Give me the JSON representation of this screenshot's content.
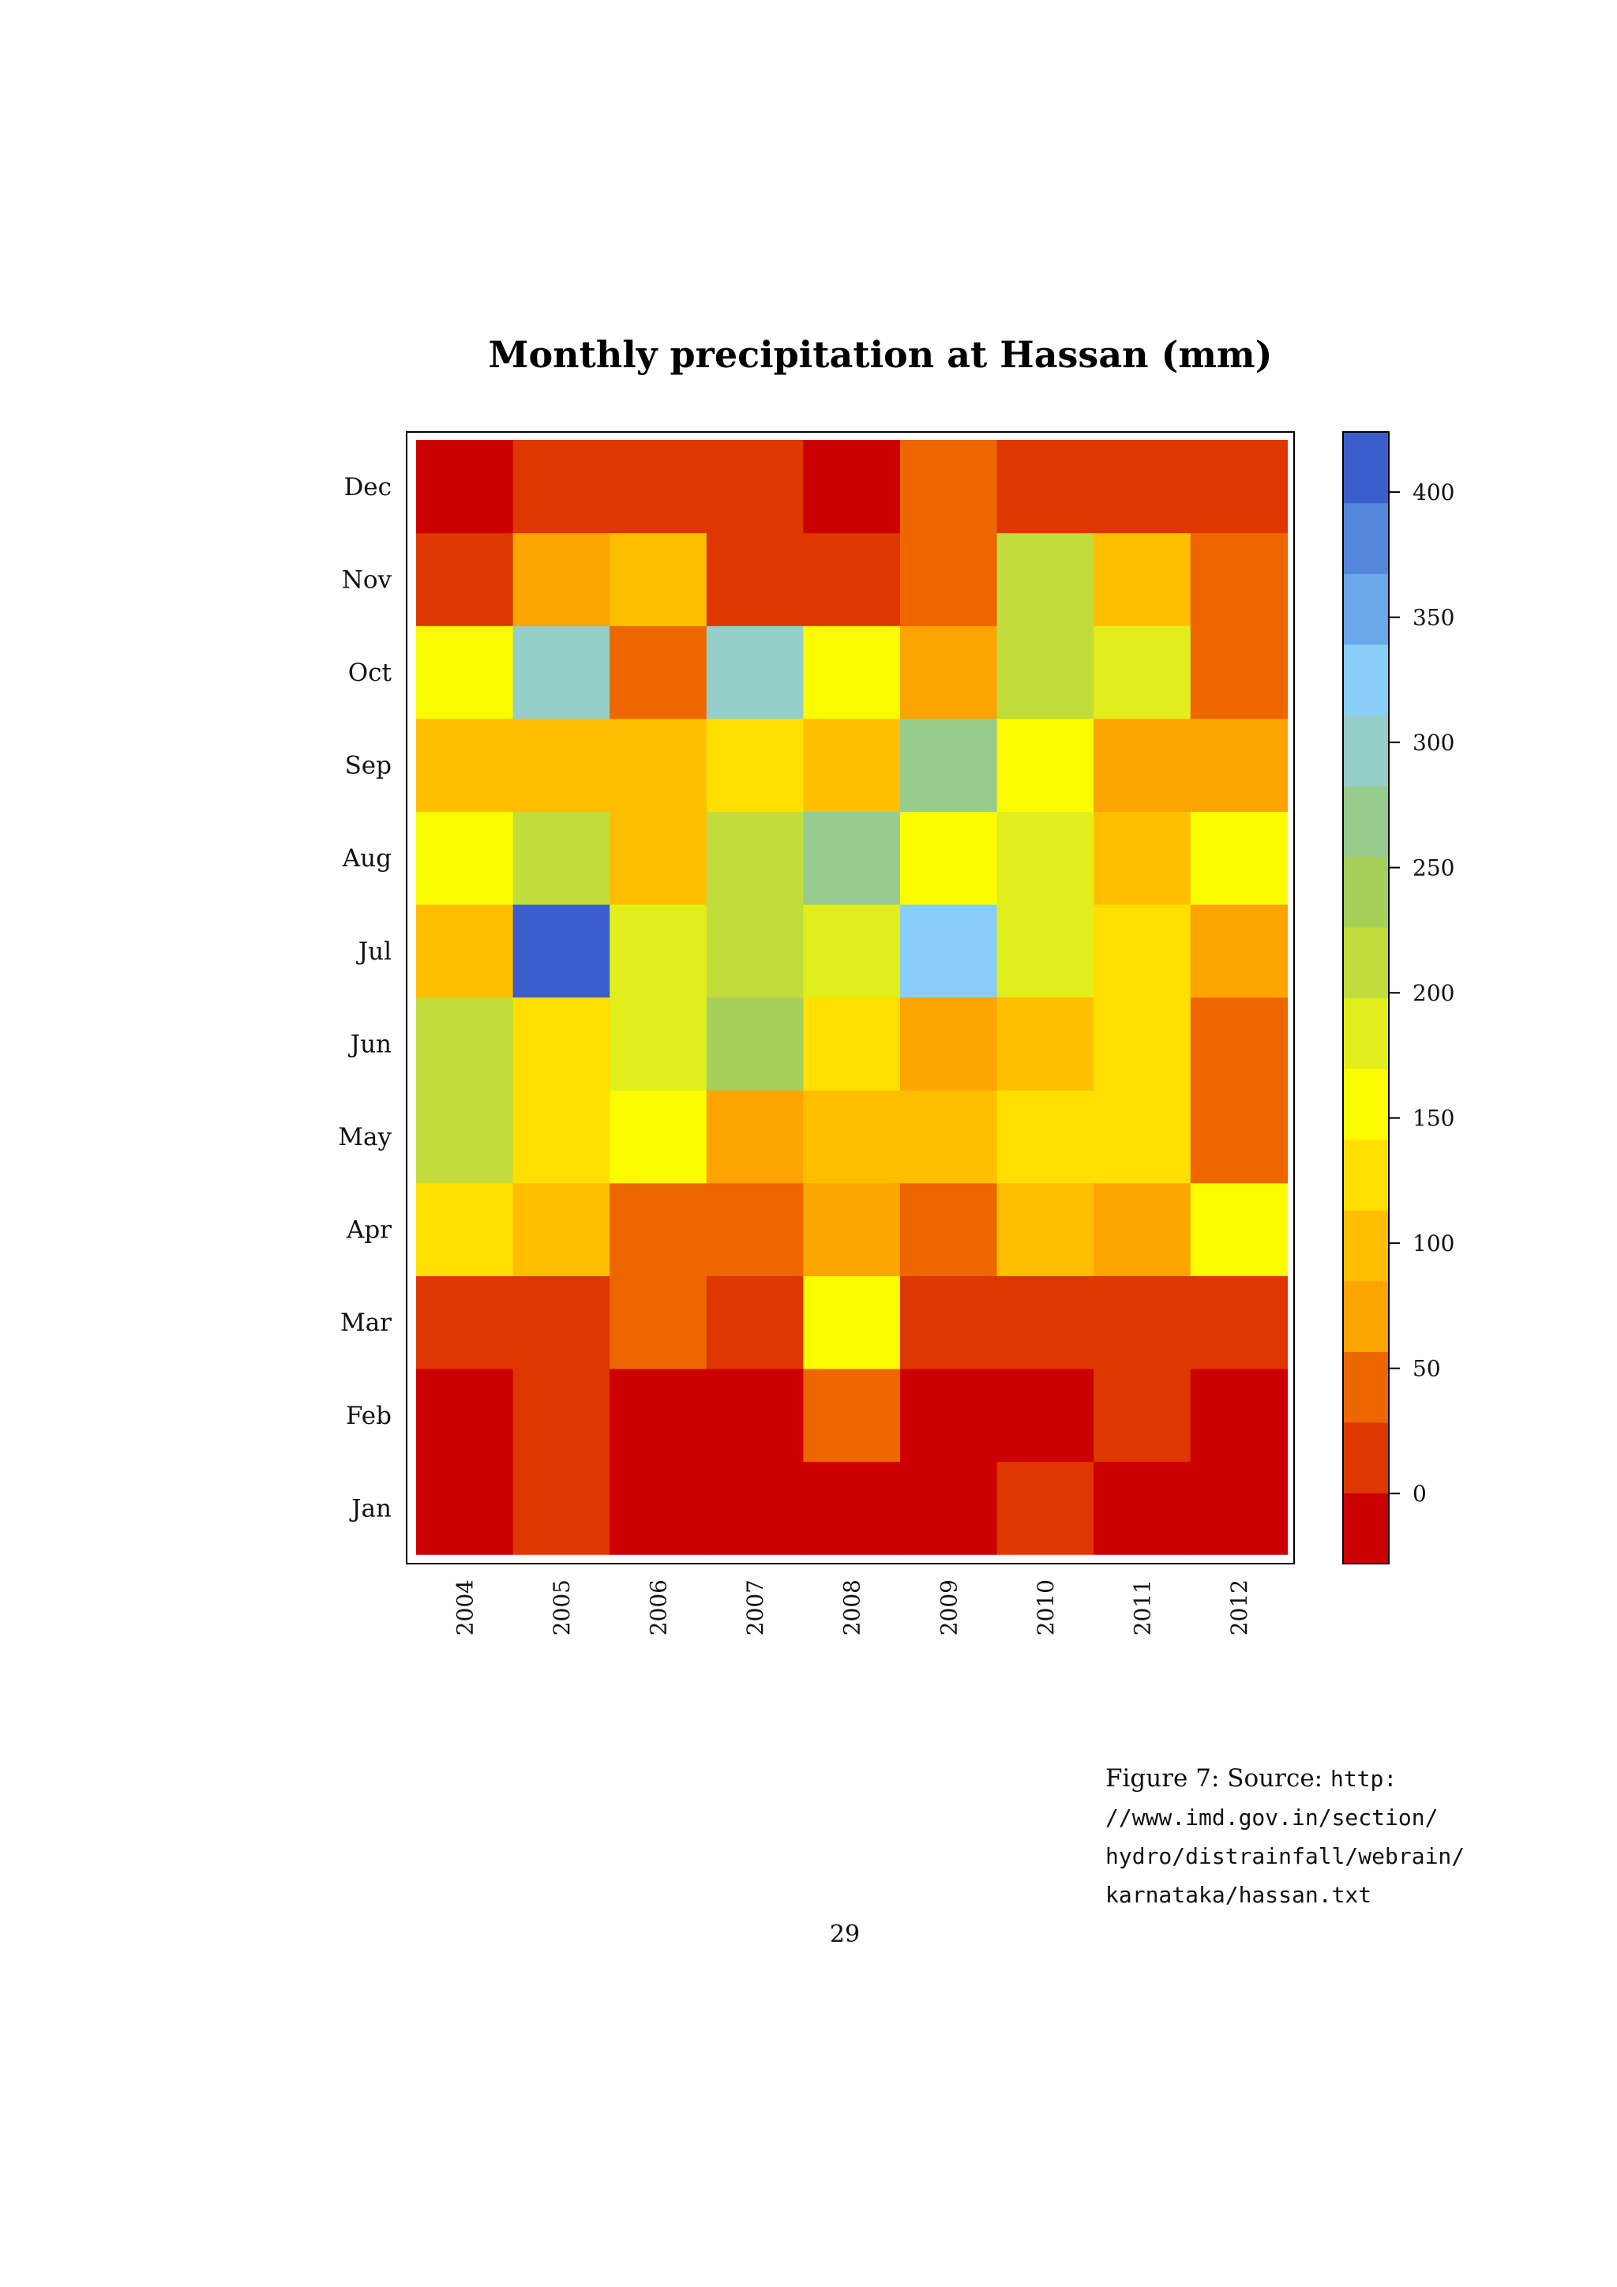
{
  "chart_data": {
    "type": "heatmap",
    "title": "Monthly precipitation at Hassan (mm)",
    "x": [
      "2004",
      "2005",
      "2006",
      "2007",
      "2008",
      "2009",
      "2010",
      "2011",
      "2012"
    ],
    "y": [
      "Jan",
      "Feb",
      "Mar",
      "Apr",
      "May",
      "Jun",
      "Jul",
      "Aug",
      "Sep",
      "Oct",
      "Nov",
      "Dec"
    ],
    "values": [
      [
        -10,
        10,
        -10,
        -10,
        -10,
        -10,
        10,
        -10,
        -10
      ],
      [
        -10,
        10,
        -10,
        -10,
        40,
        -10,
        -10,
        10,
        -10
      ],
      [
        10,
        10,
        40,
        10,
        160,
        10,
        10,
        10,
        10
      ],
      [
        130,
        110,
        40,
        40,
        80,
        40,
        110,
        80,
        160
      ],
      [
        210,
        130,
        160,
        80,
        110,
        110,
        130,
        130,
        40
      ],
      [
        210,
        130,
        190,
        230,
        130,
        80,
        110,
        130,
        40
      ],
      [
        110,
        410,
        190,
        210,
        190,
        330,
        190,
        130,
        80
      ],
      [
        160,
        210,
        110,
        210,
        260,
        160,
        190,
        110,
        160
      ],
      [
        110,
        110,
        110,
        130,
        110,
        260,
        160,
        80,
        80
      ],
      [
        160,
        300,
        40,
        300,
        160,
        80,
        210,
        190,
        40
      ],
      [
        10,
        80,
        110,
        10,
        10,
        40,
        210,
        110,
        40
      ],
      [
        -10,
        10,
        10,
        10,
        -10,
        40,
        10,
        10,
        10
      ]
    ],
    "colorbar": {
      "ticks": [
        "0",
        "50",
        "100",
        "150",
        "200",
        "250",
        "300",
        "350",
        "400"
      ],
      "range": [
        -28,
        424
      ],
      "bin_width": 28.25,
      "colors": [
        "#cc0000",
        "#de3700",
        "#ee6600",
        "#fca400",
        "#ffbf00",
        "#ffdf00",
        "#fcfc00",
        "#e2ee1c",
        "#c2dc3c",
        "#a6d05a",
        "#98cc8e",
        "#94cec8",
        "#88cef6",
        "#6aa8ea",
        "#5486dc",
        "#3c5ecc"
      ]
    }
  },
  "caption": {
    "label": "Figure 7: Source: ",
    "url_lines": [
      "http:",
      "//www.imd.gov.in/section/",
      "hydro/distrainfall/webrain/",
      "karnataka/hassan.txt"
    ]
  },
  "page_number": "29"
}
